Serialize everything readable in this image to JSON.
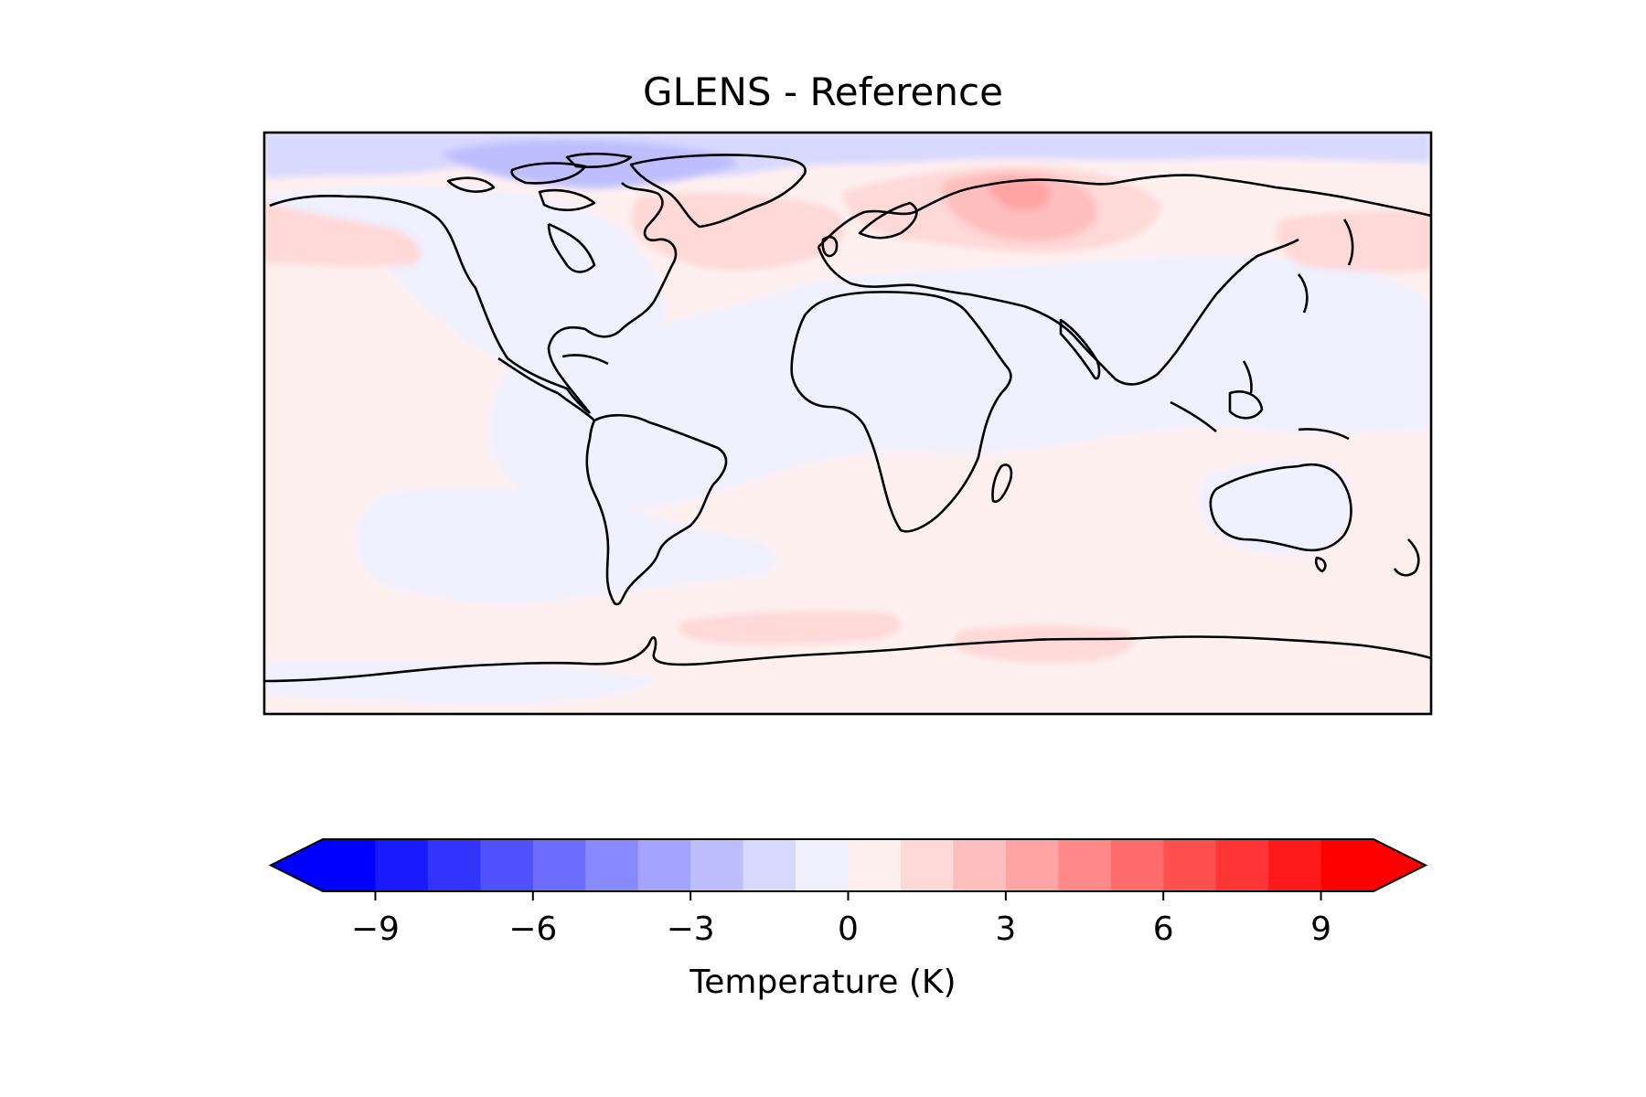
{
  "map": {
    "title": "GLENS - Reference",
    "projection": "PlateCarree (global, 180°W–180°E, 90°S–90°N)",
    "field": "Temperature difference",
    "background_level": "0 to 1 K (pale pink) over most oceans; -1 to 0 K (pale blue) over continents and tropics",
    "features": [
      {
        "name": "Arctic cap",
        "level": "-2 to -1 K"
      },
      {
        "name": "Canadian Archipelago / Baffin Bay",
        "level": "-3 to -2 K"
      },
      {
        "name": "Northern Siberia / Barents-Kara",
        "level": "2 to 3 K"
      },
      {
        "name": "North Atlantic subpolar",
        "level": "1 to 2 K"
      },
      {
        "name": "North Pacific band",
        "level": "1 to 2 K"
      },
      {
        "name": "Southern Ocean near Antarctica",
        "level": "1 to 2 K"
      }
    ]
  },
  "colorbar": {
    "label": "Temperature (K)",
    "vmin": -10,
    "vmax": 10,
    "step": 1,
    "extend": "both",
    "ticks": [
      -9,
      -6,
      -3,
      0,
      3,
      6,
      9
    ],
    "tick_labels": [
      "−9",
      "−6",
      "−3",
      "0",
      "3",
      "6",
      "9"
    ],
    "colors": [
      "#0000ff",
      "#1a1aff",
      "#3434ff",
      "#5050ff",
      "#6c6cff",
      "#8888ff",
      "#a4a4ff",
      "#bebeff",
      "#d8d8ff",
      "#f0f0ff",
      "#fff0f0",
      "#ffd8d8",
      "#ffbebe",
      "#ffa4a4",
      "#ff8888",
      "#ff6c6c",
      "#ff5050",
      "#ff3434",
      "#ff1a1a",
      "#ff0000"
    ],
    "under_color": "#0000ff",
    "over_color": "#ff0000"
  }
}
